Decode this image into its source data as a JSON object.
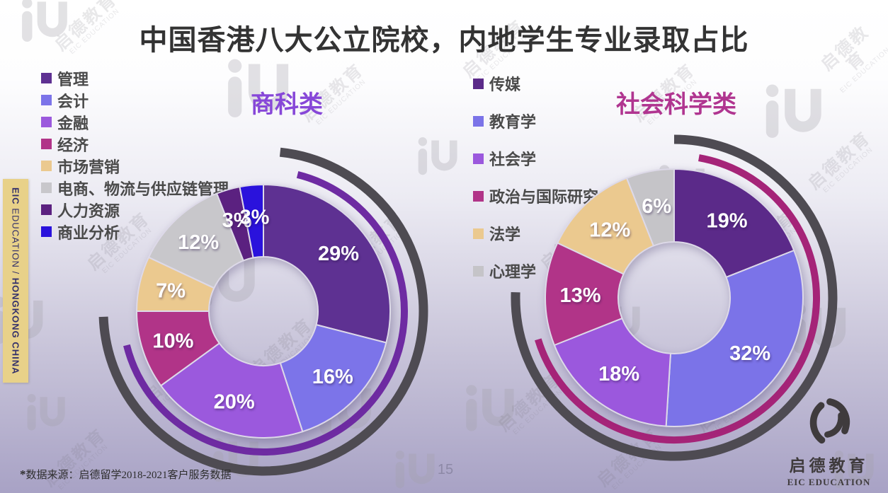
{
  "slide": {
    "title": "中国香港八大公立院校，内地学生专业录取占比",
    "page_number": "15",
    "source_note_mark": "*",
    "source_note": "数据来源：启德留学2018-2021客户服务数据"
  },
  "sidebar": {
    "brand": "EIC",
    "brand_rest": " EDUCATION ",
    "separator": "/",
    "region": " HONGKONG CHINA",
    "bg_color": "#e8d189",
    "text_color": "#33306a"
  },
  "logo": {
    "cn": "启德教育",
    "en": "EIC EDUCATION",
    "color": "#3f3b3d"
  },
  "watermark": {
    "cn": "启德教育",
    "en": "EIC EDUCATION"
  },
  "chart_data": [
    {
      "type": "pie",
      "subtype": "donut",
      "title": "商科类",
      "title_color": "#8747d8",
      "unit": "%",
      "direction": "clockwise",
      "start_angle_deg": 0,
      "legend_position": "left",
      "categories": [
        "管理",
        "会计",
        "金融",
        "经济",
        "市场营销",
        "电商、物流与供应链管理",
        "人力资源",
        "商业分析"
      ],
      "values": [
        29,
        16,
        20,
        10,
        7,
        12,
        3,
        3
      ],
      "colors": [
        "#5e3192",
        "#7c74e9",
        "#9b59dd",
        "#b13488",
        "#ebc98f",
        "#c8c7cb",
        "#5b2180",
        "#2a12dc"
      ],
      "decor_rings": [
        {
          "color": "#4e4b52"
        },
        {
          "color": "#6e2ba2"
        }
      ]
    },
    {
      "type": "pie",
      "subtype": "donut",
      "title": "社会科学类",
      "title_color": "#b03590",
      "unit": "%",
      "direction": "clockwise",
      "start_angle_deg": 0,
      "legend_position": "left",
      "categories": [
        "传媒",
        "教育学",
        "社会学",
        "政治与国际研究",
        "法学",
        "心理学"
      ],
      "values": [
        19,
        32,
        18,
        13,
        12,
        6
      ],
      "colors": [
        "#5b2a89",
        "#7b73e8",
        "#9b58dd",
        "#b13488",
        "#ebc98f",
        "#c5c4c8"
      ],
      "decor_rings": [
        {
          "color": "#4e4b52"
        },
        {
          "color": "#a52478"
        }
      ]
    }
  ]
}
